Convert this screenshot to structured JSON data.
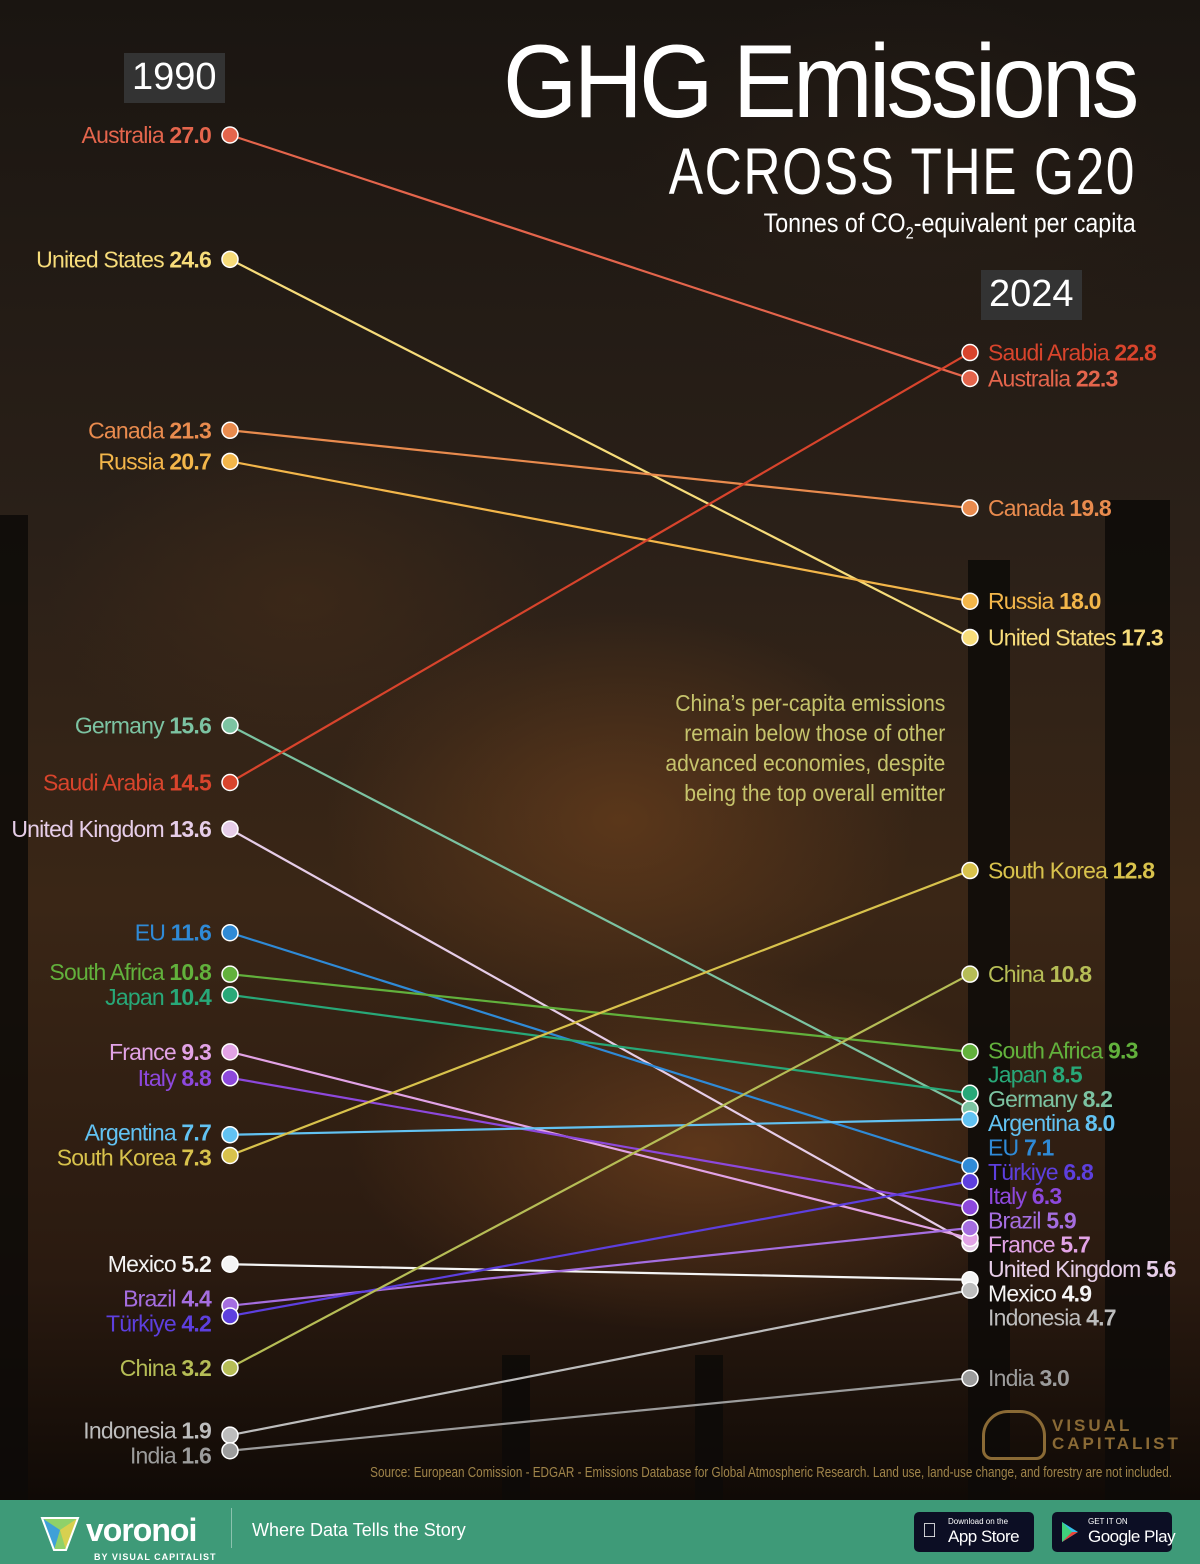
{
  "header": {
    "title": "GHG Emissions",
    "subtitle": "ACROSS THE G20",
    "units_prefix": "Tonnes of CO",
    "units_sub": "2",
    "units_suffix": "-equivalent per capita"
  },
  "annotation": [
    "China’s per-capita emissions",
    "remain below those of other",
    "advanced economies, despite",
    "being the top overall emitter"
  ],
  "source": "Source: European Comission - EDGAR - Emissions Database for Global Atmospheric Research. Land use, land-use change, and forestry are not included.",
  "brand": {
    "logo_line1": "VISUAL",
    "logo_line2": "CAPITALIST"
  },
  "footer": {
    "logo": "voronoi",
    "logo_by": "BY VISUAL CAPITALIST",
    "tagline": "Where Data Tells the Story",
    "app_store_small": "Download on the",
    "app_store_big": "App Store",
    "google_small": "GET IT ON",
    "google_big": "Google Play"
  },
  "chart_data": {
    "type": "slope",
    "x_labels": [
      "1990",
      "2024"
    ],
    "series": [
      {
        "name": "Australia",
        "v1990": 27.0,
        "v2024": 22.3,
        "color": "#e4654c"
      },
      {
        "name": "United States",
        "v1990": 24.6,
        "v2024": 17.3,
        "color": "#f7dc7a"
      },
      {
        "name": "Canada",
        "v1990": 21.3,
        "v2024": 19.8,
        "color": "#e98b4e"
      },
      {
        "name": "Russia",
        "v1990": 20.7,
        "v2024": 18.0,
        "color": "#f3b64a"
      },
      {
        "name": "Germany",
        "v1990": 15.6,
        "v2024": 8.2,
        "color": "#7cc3a2"
      },
      {
        "name": "Saudi Arabia",
        "v1990": 14.5,
        "v2024": 22.8,
        "color": "#d8442c"
      },
      {
        "name": "United Kingdom",
        "v1990": 13.6,
        "v2024": 5.6,
        "color": "#e6cde8"
      },
      {
        "name": "EU",
        "v1990": 11.6,
        "v2024": 7.1,
        "color": "#2f8ad6"
      },
      {
        "name": "South Africa",
        "v1990": 10.8,
        "v2024": 9.3,
        "color": "#62b13c"
      },
      {
        "name": "Japan",
        "v1990": 10.4,
        "v2024": 8.5,
        "color": "#28a878"
      },
      {
        "name": "France",
        "v1990": 9.3,
        "v2024": 5.7,
        "color": "#e2a3e6"
      },
      {
        "name": "Italy",
        "v1990": 8.8,
        "v2024": 6.3,
        "color": "#8d48dc"
      },
      {
        "name": "Argentina",
        "v1990": 7.7,
        "v2024": 8.0,
        "color": "#62c2f2"
      },
      {
        "name": "South Korea",
        "v1990": 7.3,
        "v2024": 12.8,
        "color": "#d8c24c"
      },
      {
        "name": "Mexico",
        "v1990": 5.2,
        "v2024": 4.9,
        "color": "#f4f4f4"
      },
      {
        "name": "Brazil",
        "v1990": 4.4,
        "v2024": 5.9,
        "color": "#a56ee0"
      },
      {
        "name": "Türkiye",
        "v1990": 4.2,
        "v2024": 6.8,
        "color": "#5d3fde"
      },
      {
        "name": "China",
        "v1990": 3.2,
        "v2024": 10.8,
        "color": "#b6bd56"
      },
      {
        "name": "Indonesia",
        "v1990": 1.9,
        "v2024": 4.7,
        "color": "#bdbdbd"
      },
      {
        "name": "India",
        "v1990": 1.6,
        "v2024": 3.0,
        "color": "#9c9c9c"
      }
    ]
  }
}
